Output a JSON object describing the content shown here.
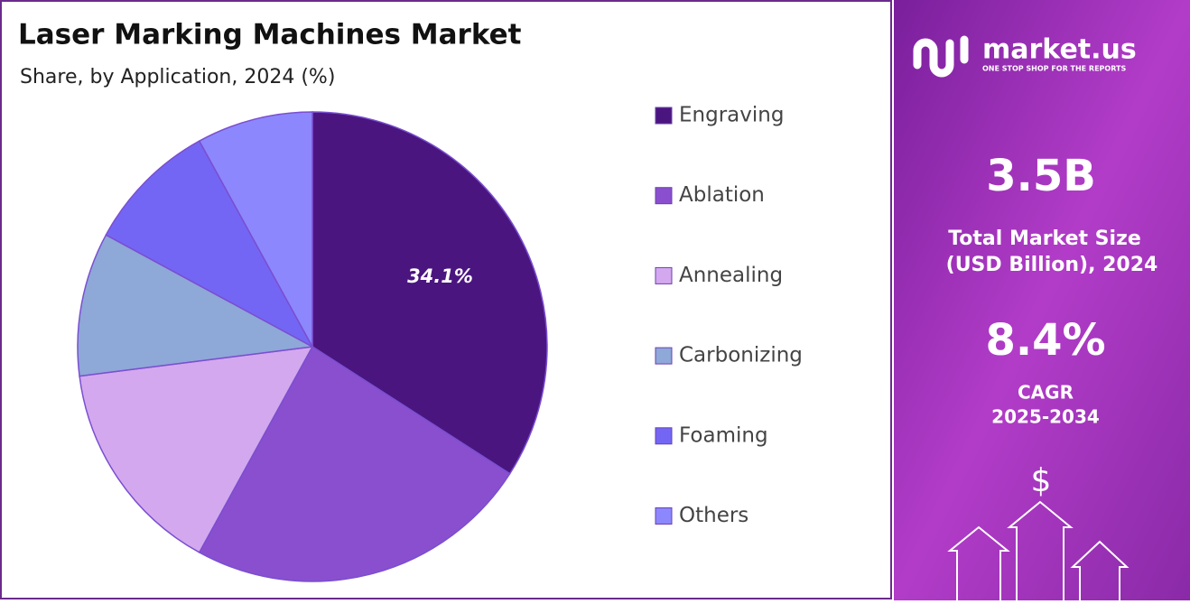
{
  "chart_data": {
    "type": "pie",
    "title": "Laser Marking Machines Market",
    "subtitle": "Share, by Application, 2024 (%)",
    "categories": [
      "Engraving",
      "Ablation",
      "Annealing",
      "Carbonizing",
      "Foaming",
      "Others"
    ],
    "values": [
      34.1,
      23.9,
      15.0,
      9.9,
      9.1,
      8.0
    ],
    "value_labels": [
      "34.1%",
      null,
      null,
      null,
      null,
      null
    ],
    "colors": [
      "#4b1580",
      "#8a4fcf",
      "#d4a8ee",
      "#8ea8d8",
      "#7466f5",
      "#8c87fc"
    ],
    "legend": "right"
  },
  "panel": {
    "brand": "market.us",
    "tagline": "ONE STOP SHOP FOR THE REPORTS",
    "market_size": "3.5B",
    "market_size_label": [
      "Total Market Size",
      "(USD Billion), 2024"
    ],
    "cagr": "8.4%",
    "cagr_label": [
      "CAGR",
      "2025-2034"
    ]
  }
}
